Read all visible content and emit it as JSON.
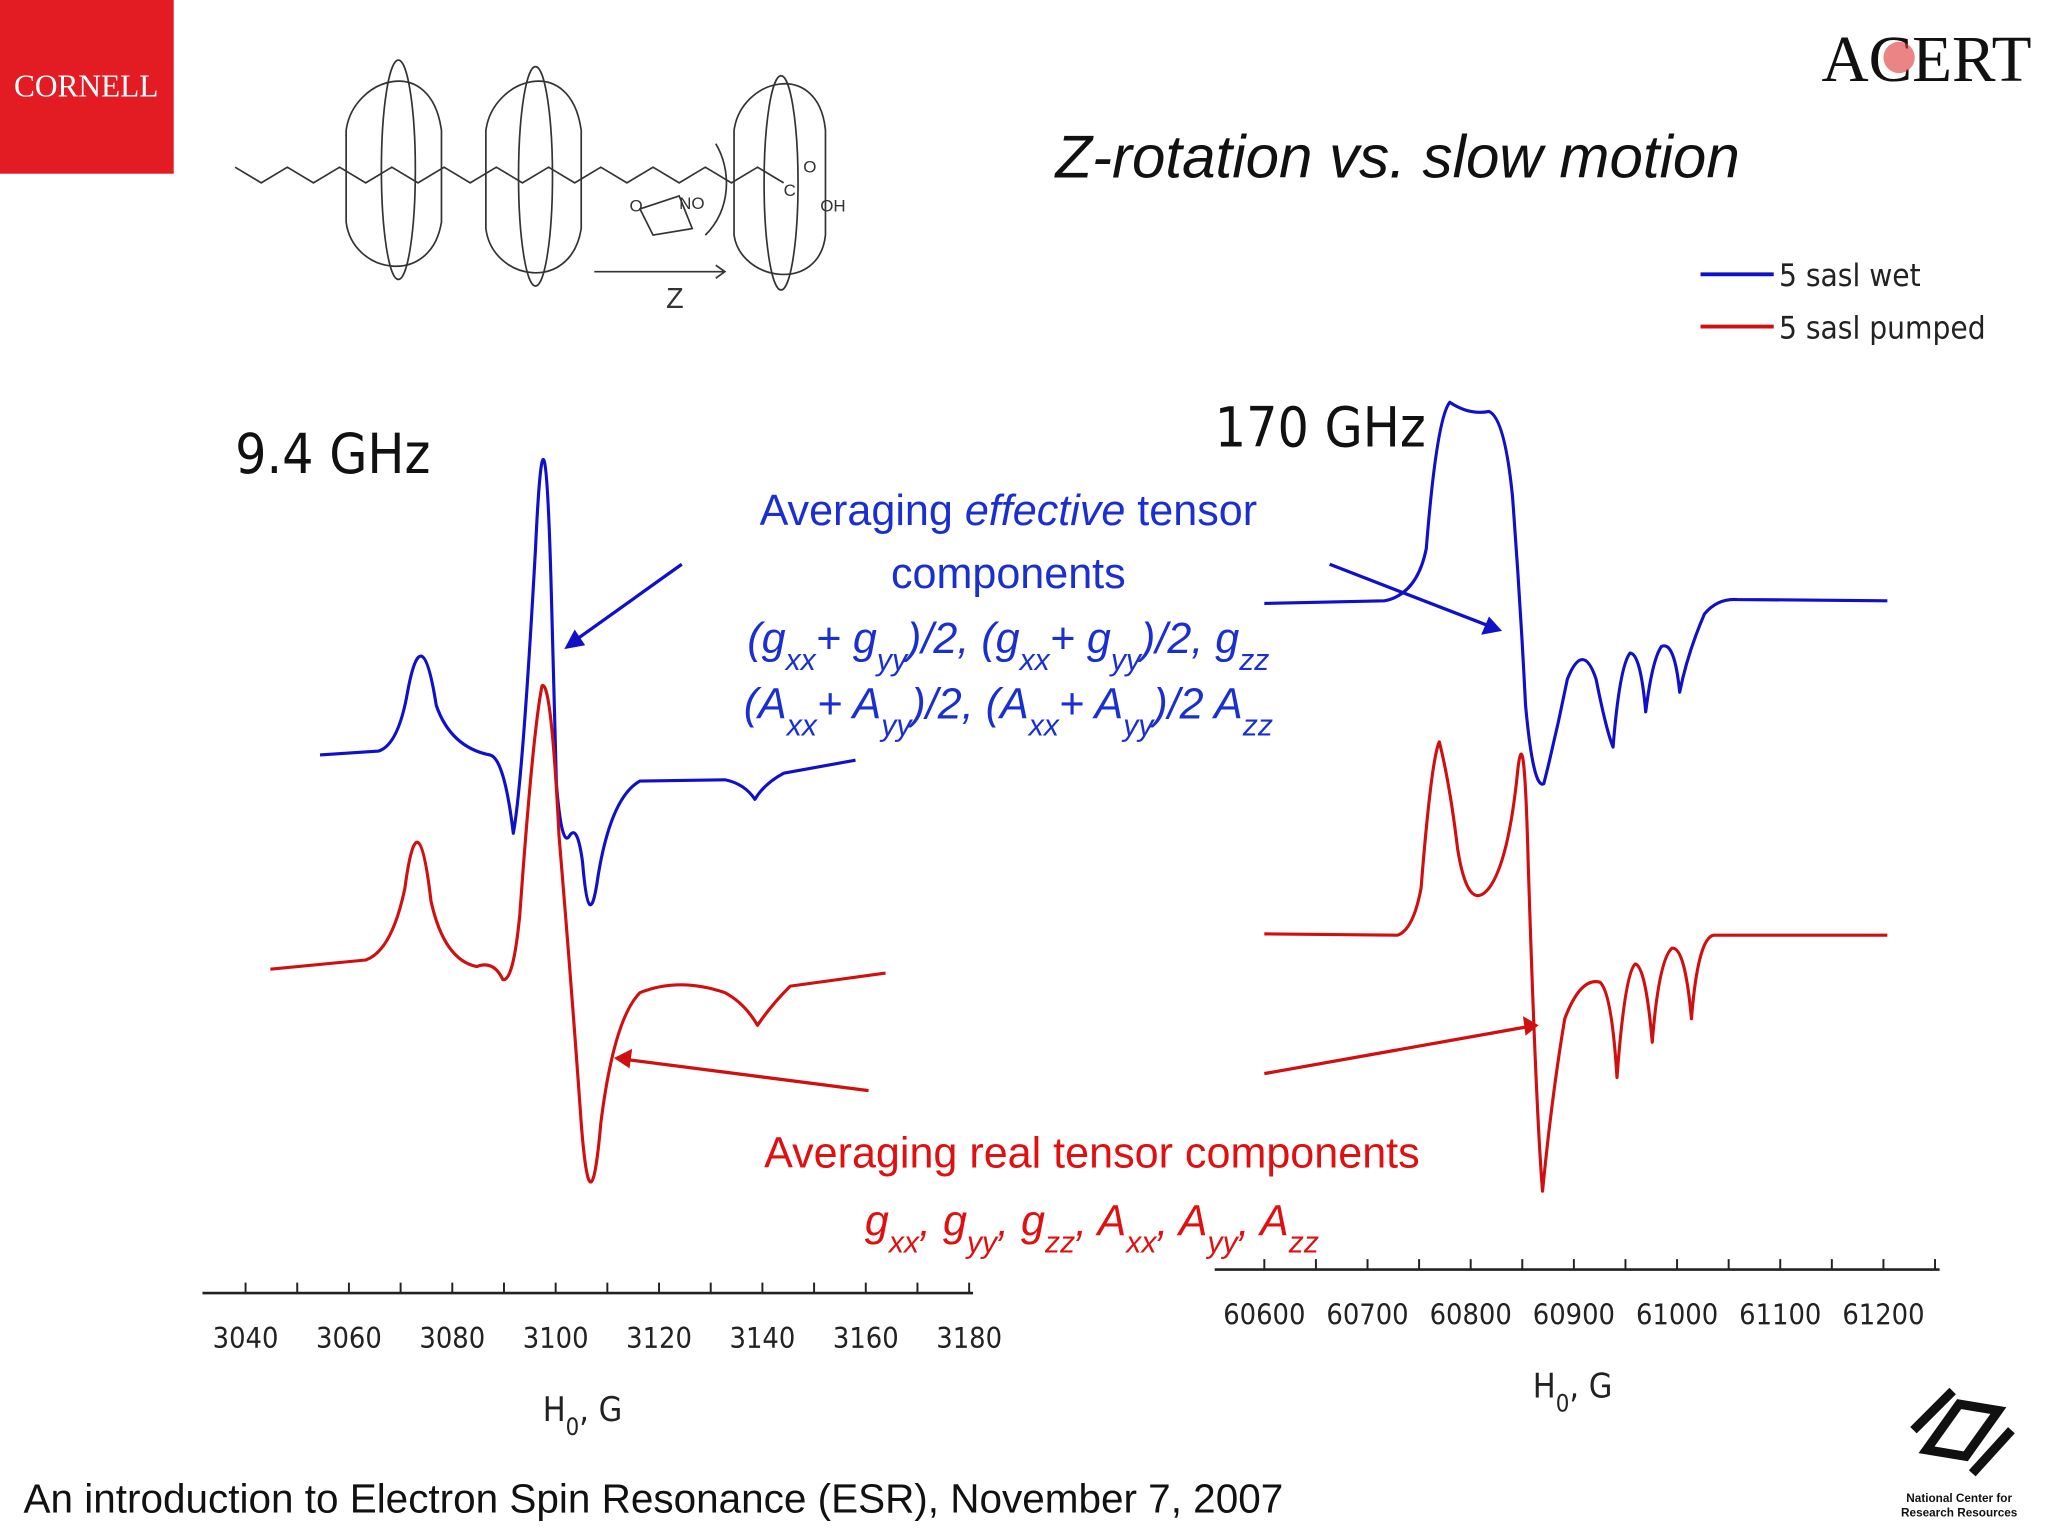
{
  "logos": {
    "cornell": "CORNELL",
    "acert": "ACERT",
    "ncrr": [
      "National Center for",
      "Research Resources"
    ]
  },
  "title": "Z-rotation vs. slow motion",
  "diagram": {
    "labels": [
      "Z",
      "NO",
      "O",
      "C",
      "O",
      "OH"
    ]
  },
  "legend": [
    "5 sasl wet",
    "5 sasl pumped"
  ],
  "panels": [
    {
      "title": "9.4 GHz",
      "ticks": [
        "3040",
        "3060",
        "3080",
        "3100",
        "3120",
        "3140",
        "3160",
        "3180"
      ],
      "axis_label": [
        "H",
        "0",
        ", G"
      ]
    },
    {
      "title": "170 GHz",
      "ticks": [
        "60600",
        "60700",
        "60800",
        "60900",
        "61000",
        "61100",
        "61200"
      ],
      "axis_label": [
        "H",
        "0",
        ", G"
      ]
    }
  ],
  "annotations": {
    "blue": {
      "line1": [
        "Averaging ",
        "effective",
        " tensor"
      ],
      "line2": "components",
      "line3": [
        "(g",
        "xx",
        "+ g",
        "yy",
        ")/2, (g",
        "xx",
        "+ g",
        "yy",
        ")/2, g",
        "zz"
      ],
      "line4": [
        "(A",
        "xx",
        "+ A",
        "yy",
        ")/2, (A",
        "xx",
        "+ A",
        "yy",
        ")/2 A",
        "zz"
      ]
    },
    "red": {
      "line1": "Averaging real tensor components",
      "line2": [
        "g",
        "xx",
        ", g",
        "yy",
        ", g",
        "zz",
        ", A",
        "xx",
        ", A",
        "yy",
        ", A",
        "zz"
      ]
    }
  },
  "footer": "An introduction to Electron Spin Resonance (ESR), November 7, 2007"
}
